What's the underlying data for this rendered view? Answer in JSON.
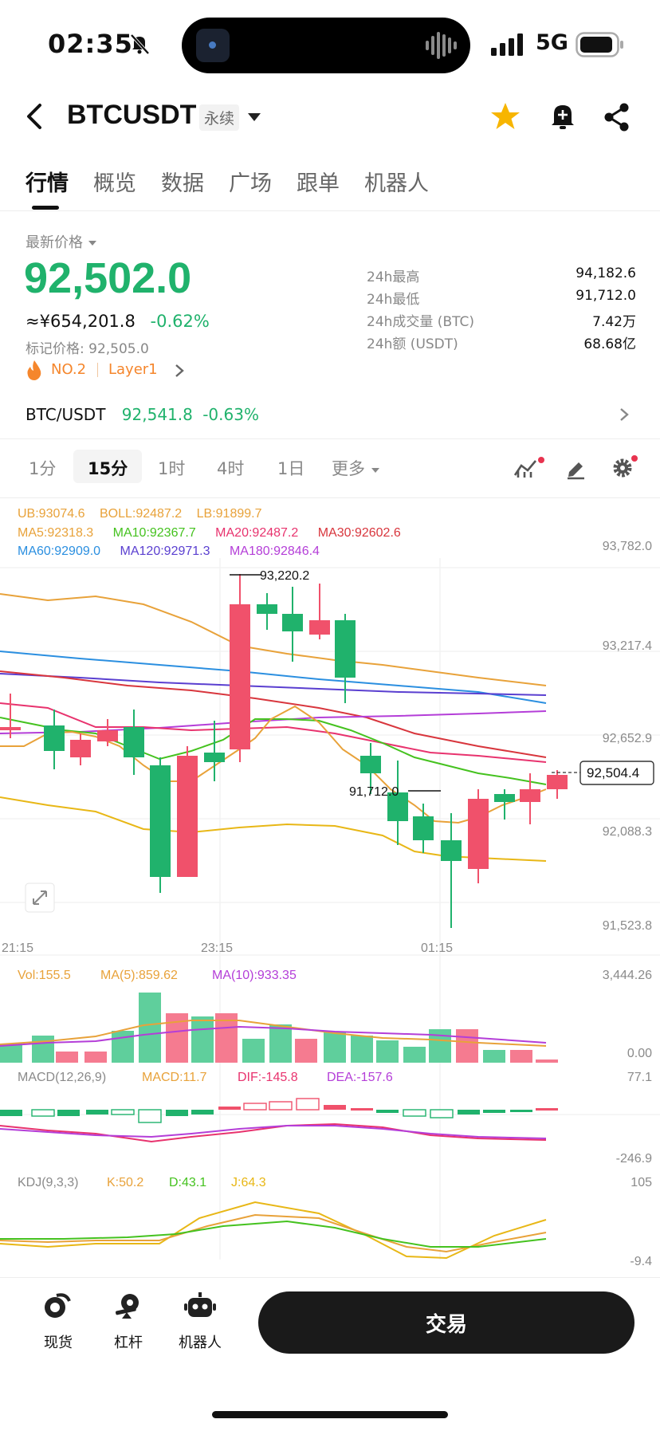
{
  "status_bar": {
    "time": "02:35",
    "network": "5G"
  },
  "header": {
    "symbol": "BTCUSDT",
    "contract_type": "永续"
  },
  "tabs": [
    "行情",
    "概览",
    "数据",
    "广场",
    "跟单",
    "机器人"
  ],
  "price_panel": {
    "latest_label": "最新价格",
    "last_price": "92,502.0",
    "cny_value": "≈¥654,201.8",
    "change": "-0.62%",
    "mark_price": "标记价格: 92,505.0",
    "rank_tag": "NO.2",
    "sector_tag": "Layer1",
    "stats": [
      {
        "label": "24h最高",
        "value": "94,182.6"
      },
      {
        "label": "24h最低",
        "value": "91,712.0"
      },
      {
        "label": "24h成交量 (BTC)",
        "value": "7.42万"
      },
      {
        "label": "24h额 (USDT)",
        "value": "68.68亿"
      }
    ]
  },
  "spot_pair": {
    "name": "BTC/USDT",
    "price": "92,541.8",
    "change": "-0.63%"
  },
  "timeframes": [
    "1分",
    "15分",
    "1时",
    "4时",
    "1日",
    "更多"
  ],
  "active_timeframe": "15分",
  "indicators": {
    "boll": {
      "ub": "UB:93074.6",
      "boll": "BOLL:92487.2",
      "lb": "LB:91899.7"
    },
    "ma1": {
      "ma5": "MA5:92318.3",
      "ma10": "MA10:92367.7",
      "ma20": "MA20:92487.2",
      "ma30": "MA30:92602.6"
    },
    "ma2": {
      "ma60": "MA60:92909.0",
      "ma120": "MA120:92971.3",
      "ma180": "MA180:92846.4"
    },
    "vol": {
      "vol": "Vol:155.5",
      "ma5": "MA(5):859.62",
      "ma10": "MA(10):933.35"
    },
    "macd": {
      "name": "MACD(12,26,9)",
      "macd": "MACD:11.7",
      "dif": "DIF:-145.8",
      "dea": "DEA:-157.6"
    },
    "kdj": {
      "name": "KDJ(9,3,3)",
      "k": "K:50.2",
      "d": "D:43.1",
      "j": "J:64.3"
    }
  },
  "price_axis": [
    "93,782.0",
    "93,217.4",
    "92,652.9",
    "92,088.3",
    "91,523.8"
  ],
  "time_axis": [
    "21:15",
    "23:15",
    "01:15"
  ],
  "high_marker": "93,220.2",
  "low_marker": "91,712.0",
  "current_marker": "92,504.4",
  "vol_axis": {
    "top": "3,444.26",
    "bottom": "0.00"
  },
  "macd_axis": {
    "top": "77.1",
    "bottom": "-246.9"
  },
  "kdj_axis": {
    "top": "105",
    "bottom": "-9.4"
  },
  "bottom_nav": [
    {
      "label": "现货"
    },
    {
      "label": "杠杆"
    },
    {
      "label": "机器人"
    }
  ],
  "trade_button": "交易",
  "colors": {
    "up": "#f0516b",
    "down": "#20b26c"
  }
}
